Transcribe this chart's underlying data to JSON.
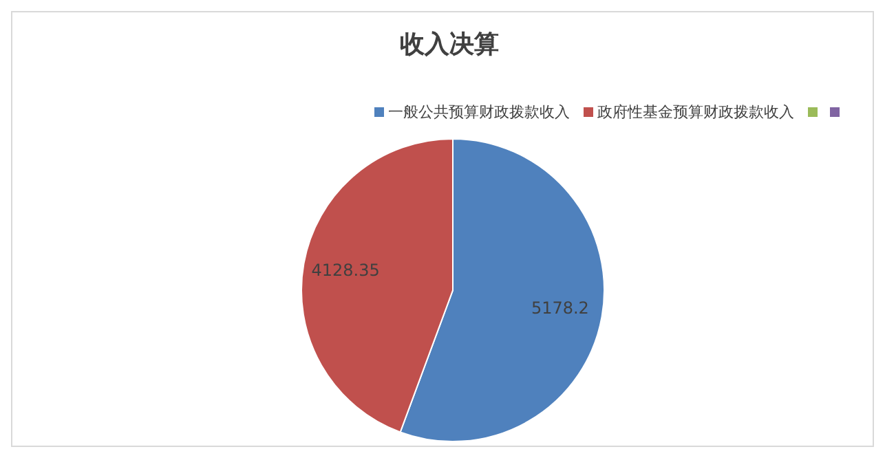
{
  "chart_data": {
    "type": "pie",
    "title": "收入决算",
    "categories": [
      "一般公共预算财政拨款收入",
      "政府性基金预算财政拨款收入",
      null,
      null
    ],
    "values": [
      5178.2,
      4128.35,
      0,
      0
    ],
    "colors": [
      "#4f81bd",
      "#c0504d",
      "#9bbb59",
      "#8064a2"
    ],
    "value_labels": [
      "5178.2",
      "4128.35",
      null,
      null
    ],
    "legend": "top right"
  }
}
